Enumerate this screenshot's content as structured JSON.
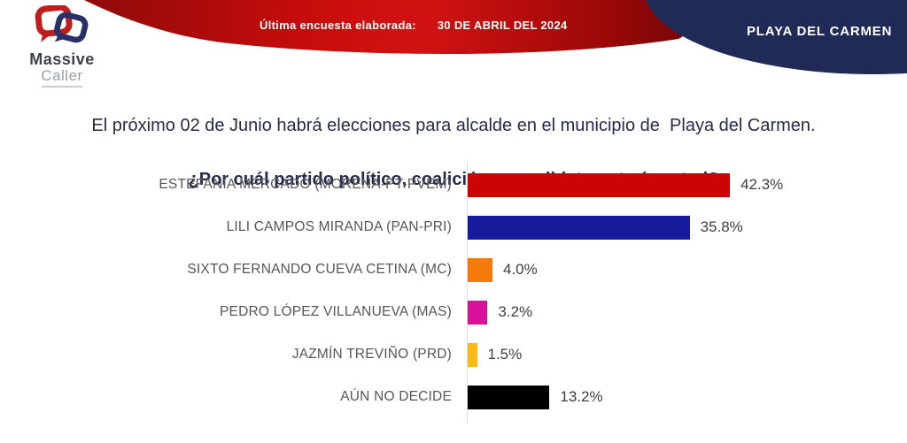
{
  "header": {
    "logo": {
      "line1": "Massive",
      "line2": "Caller"
    },
    "banner": {
      "label": "Última encuesta elaborada:",
      "date": "30 DE ABRIL DEL 2024"
    },
    "region": "PLAYA DEL CARMEN",
    "colors": {
      "banner_red_bright": "#cf0d0d",
      "banner_red_dark": "#7d0707",
      "banner_navy": "#1f2a57"
    }
  },
  "question": {
    "line1": "El próximo 02 de Junio habrá elecciones para alcalde en el municipio de  Playa del Carmen.",
    "line2": "¿Por cuál partido político, coalición o candidato votaría usted?"
  },
  "chart_data": {
    "type": "bar",
    "orientation": "horizontal",
    "title": "",
    "xlabel": "",
    "ylabel": "",
    "xlim": [
      0,
      45
    ],
    "grid": false,
    "legend": "none",
    "categories": [
      "ESTEFANÍA MERCADO (MORENA-PT-PVEM)",
      "LILI CAMPOS MIRANDA (PAN-PRI)",
      "SIXTO FERNANDO CUEVA CETINA (MC)",
      "PEDRO LÓPEZ VILLANUEVA (MAS)",
      "JAZMÍN TREVIÑO (PRD)",
      "AÚN NO DECIDE"
    ],
    "values": [
      42.3,
      35.8,
      4.0,
      3.2,
      1.5,
      13.2
    ],
    "value_labels": [
      "42.3%",
      "35.8%",
      "4.0%",
      "3.2%",
      "1.5%",
      "13.2%"
    ],
    "bar_colors": [
      "#cb0404",
      "#151b9b",
      "#f5790b",
      "#d6119b",
      "#fbb915",
      "#000000"
    ]
  }
}
